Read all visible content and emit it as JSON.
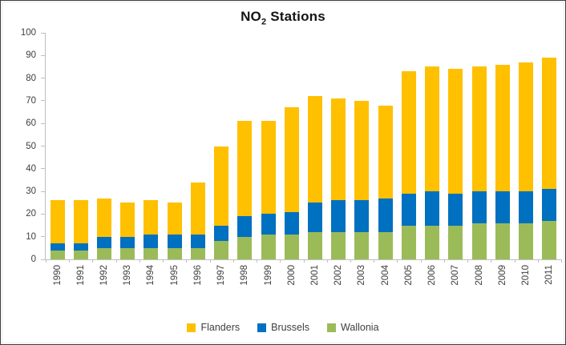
{
  "title": {
    "prefix": "NO",
    "subscript": "2",
    "suffix": " Stations"
  },
  "colors": {
    "flanders": "#FFC000",
    "brussels": "#0070C0",
    "wallonia": "#9BBB59",
    "axis": "#BFBFBF",
    "text": "#3F3F3F"
  },
  "legend": {
    "items": [
      {
        "label": "Flanders",
        "color": "#FFC000"
      },
      {
        "label": "Brussels",
        "color": "#0070C0"
      },
      {
        "label": "Wallonia",
        "color": "#9BBB59"
      }
    ]
  },
  "chart_data": {
    "type": "bar",
    "stacked": true,
    "title": "NO2 Stations",
    "categories": [
      "1990",
      "1991",
      "1992",
      "1993",
      "1994",
      "1995",
      "1996",
      "1997",
      "1998",
      "1999",
      "2000",
      "2001",
      "2002",
      "2003",
      "2004",
      "2005",
      "2006",
      "2007",
      "2008",
      "2009",
      "2010",
      "2011"
    ],
    "series": [
      {
        "name": "Flanders",
        "color": "#FFC000",
        "values": [
          19,
          19,
          17,
          15,
          15,
          14,
          23,
          35,
          42,
          41,
          46,
          47,
          45,
          44,
          41,
          54,
          55,
          55,
          55,
          56,
          57,
          58
        ]
      },
      {
        "name": "Brussels",
        "color": "#0070C0",
        "values": [
          3,
          3,
          5,
          5,
          6,
          6,
          6,
          7,
          9,
          9,
          10,
          13,
          14,
          14,
          15,
          14,
          15,
          14,
          14,
          14,
          14,
          14
        ]
      },
      {
        "name": "Wallonia",
        "color": "#9BBB59",
        "values": [
          4,
          4,
          5,
          5,
          5,
          5,
          5,
          8,
          10,
          11,
          11,
          12,
          12,
          12,
          12,
          15,
          15,
          15,
          16,
          16,
          16,
          17
        ]
      }
    ],
    "stack_order_bottom_to_top": [
      "Wallonia",
      "Brussels",
      "Flanders"
    ],
    "totals": [
      26,
      26,
      27,
      25,
      26,
      25,
      34,
      50,
      61,
      61,
      67,
      72,
      71,
      70,
      68,
      83,
      85,
      84,
      85,
      86,
      87,
      89
    ],
    "xlabel": "",
    "ylabel": "",
    "ylim": [
      0,
      100
    ],
    "ytick_step": 10,
    "yticks": [
      0,
      10,
      20,
      30,
      40,
      50,
      60,
      70,
      80,
      90,
      100
    ],
    "grid": false,
    "legend_position": "bottom",
    "x_tick_labels_rotation_deg": 90
  }
}
